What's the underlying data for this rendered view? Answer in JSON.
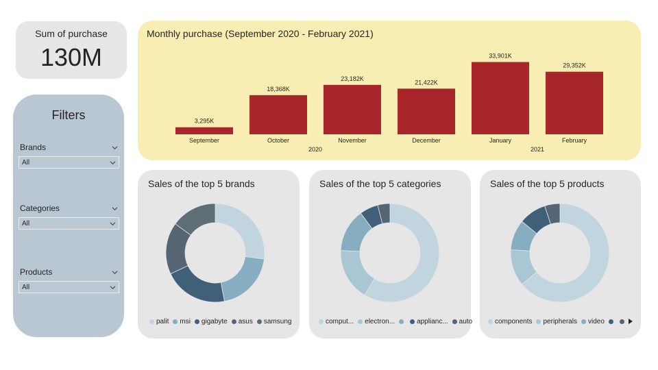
{
  "kpi": {
    "label": "Sum of purchase",
    "value": "130M"
  },
  "filters": {
    "title": "Filters",
    "items": [
      {
        "label": "Brands",
        "value": "All"
      },
      {
        "label": "Categories",
        "value": "All"
      },
      {
        "label": "Products",
        "value": "All"
      }
    ]
  },
  "colors": {
    "bar": "#a8262a",
    "monthly_bg": "#f8eeb4",
    "donut_palette": [
      "#c1d5df",
      "#86aec0",
      "#405f79",
      "#566574",
      "#5f6d77"
    ]
  },
  "chart_data": [
    {
      "type": "bar",
      "title": "Monthly purchase (September 2020 - February 2021)",
      "categories": [
        "September",
        "October",
        "November",
        "December",
        "January",
        "February"
      ],
      "values": [
        3295,
        18368,
        23182,
        21422,
        33901,
        29352
      ],
      "data_labels": [
        "3,295K",
        "18,368K",
        "23,182K",
        "21,422K",
        "33,901K",
        "29,352K"
      ],
      "year_labels": [
        {
          "text": "2020",
          "months": [
            "September",
            "October",
            "November",
            "December"
          ]
        },
        {
          "text": "2021",
          "months": [
            "January",
            "February"
          ]
        }
      ],
      "ylim": [
        0,
        36000
      ],
      "grid": false
    },
    {
      "type": "pie",
      "title": "Sales of the top 5 brands",
      "labels": [
        "palit",
        "msi",
        "gigabyte",
        "asus",
        "samsung"
      ],
      "values": [
        27,
        20,
        21,
        17,
        15
      ],
      "colors": [
        "#c1d5df",
        "#86aec0",
        "#405f79",
        "#566574",
        "#5f6d77"
      ],
      "legend": "bottom-left"
    },
    {
      "type": "pie",
      "title": "Sales of the top 5 categories",
      "labels": [
        "comput...",
        "electron...",
        "",
        "applianc...",
        "auto"
      ],
      "values": [
        58,
        17,
        14,
        6,
        4
      ],
      "colors": [
        "#c1d5df",
        "#a8c6d3",
        "#86aec0",
        "#405f79",
        "#566574"
      ],
      "legend": "bottom-left"
    },
    {
      "type": "pie",
      "title": "Sales of the top 5 products",
      "labels": [
        "components",
        "peripherals",
        "video",
        "",
        ""
      ],
      "values": [
        64,
        12,
        10,
        9,
        5
      ],
      "colors": [
        "#c1d5df",
        "#a8c6d3",
        "#86aec0",
        "#405f79",
        "#566574"
      ],
      "legend": "bottom-left"
    }
  ]
}
